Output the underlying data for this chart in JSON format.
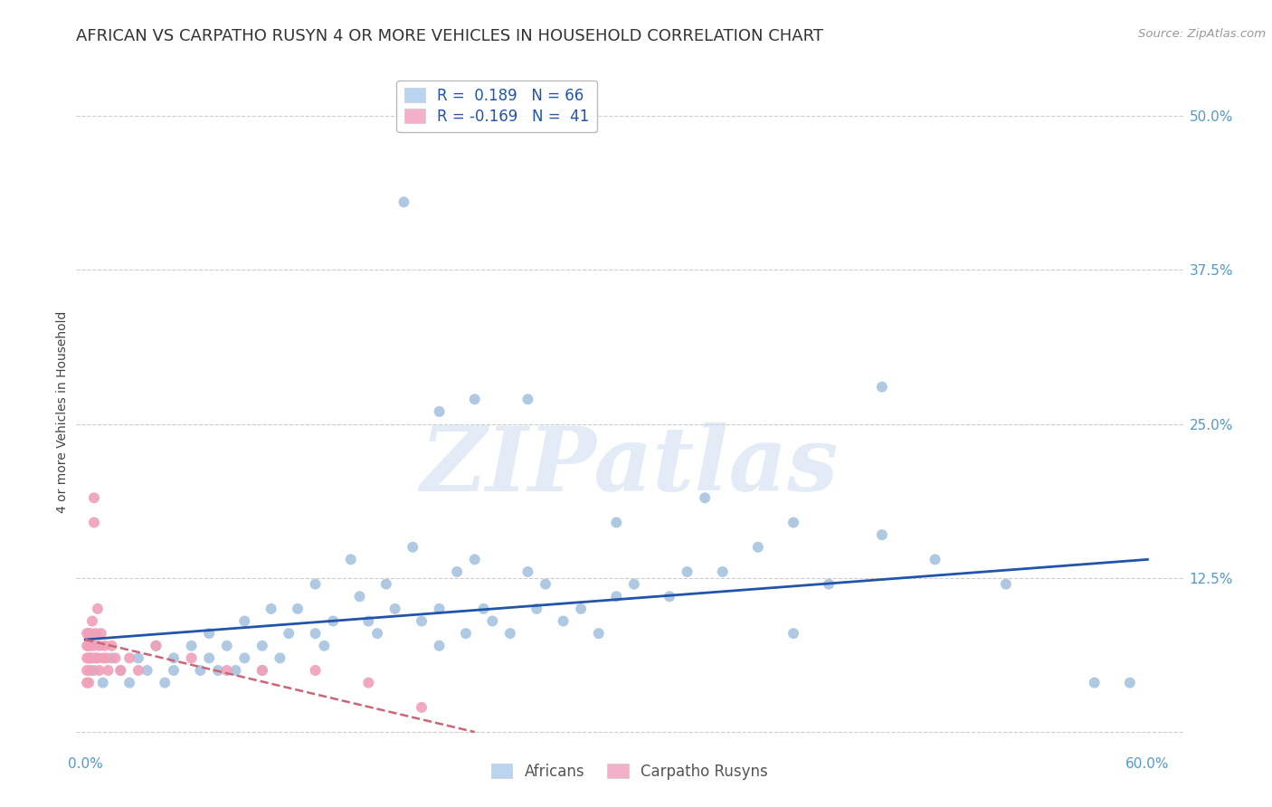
{
  "title": "AFRICAN VS CARPATHO RUSYN 4 OR MORE VEHICLES IN HOUSEHOLD CORRELATION CHART",
  "source": "Source: ZipAtlas.com",
  "ylabel": "4 or more Vehicles in Household",
  "xlim": [
    -0.005,
    0.62
  ],
  "ylim": [
    -0.015,
    0.535
  ],
  "background_color": "#ffffff",
  "grid_color": "#cccccc",
  "watermark_text": "ZIPatlas",
  "blue_dot_color": "#a8c4e0",
  "pink_dot_color": "#f0a0b8",
  "blue_line_color": "#2255aa",
  "pink_line_color": "#cc6677",
  "right_tick_color": "#5599cc",
  "x_tick_color": "#5599cc",
  "africans_x": [
    0.005,
    0.01,
    0.015,
    0.02,
    0.025,
    0.03,
    0.035,
    0.04,
    0.045,
    0.05,
    0.05,
    0.06,
    0.065,
    0.07,
    0.07,
    0.075,
    0.08,
    0.085,
    0.09,
    0.09,
    0.1,
    0.1,
    0.105,
    0.11,
    0.115,
    0.12,
    0.13,
    0.13,
    0.135,
    0.14,
    0.15,
    0.155,
    0.16,
    0.165,
    0.17,
    0.175,
    0.18,
    0.185,
    0.19,
    0.2,
    0.2,
    0.21,
    0.215,
    0.22,
    0.225,
    0.23,
    0.24,
    0.25,
    0.255,
    0.26,
    0.27,
    0.28,
    0.29,
    0.3,
    0.31,
    0.33,
    0.34,
    0.36,
    0.38,
    0.4,
    0.42,
    0.45,
    0.48,
    0.52,
    0.57,
    0.59
  ],
  "africans_y": [
    0.05,
    0.04,
    0.06,
    0.05,
    0.04,
    0.06,
    0.05,
    0.07,
    0.04,
    0.06,
    0.05,
    0.07,
    0.05,
    0.06,
    0.08,
    0.05,
    0.07,
    0.05,
    0.06,
    0.09,
    0.07,
    0.05,
    0.1,
    0.06,
    0.08,
    0.1,
    0.08,
    0.12,
    0.07,
    0.09,
    0.14,
    0.11,
    0.09,
    0.08,
    0.12,
    0.1,
    0.43,
    0.15,
    0.09,
    0.1,
    0.07,
    0.13,
    0.08,
    0.14,
    0.1,
    0.09,
    0.08,
    0.13,
    0.1,
    0.12,
    0.09,
    0.1,
    0.08,
    0.11,
    0.12,
    0.11,
    0.13,
    0.13,
    0.15,
    0.08,
    0.12,
    0.28,
    0.14,
    0.12,
    0.04,
    0.04
  ],
  "africans_extra_x": [
    0.2,
    0.22,
    0.25,
    0.3,
    0.35,
    0.4,
    0.45
  ],
  "africans_extra_y": [
    0.26,
    0.27,
    0.27,
    0.17,
    0.19,
    0.17,
    0.16
  ],
  "rusyns_x": [
    0.001,
    0.001,
    0.001,
    0.001,
    0.001,
    0.002,
    0.002,
    0.002,
    0.002,
    0.003,
    0.003,
    0.003,
    0.003,
    0.004,
    0.004,
    0.005,
    0.005,
    0.005,
    0.006,
    0.006,
    0.007,
    0.007,
    0.008,
    0.008,
    0.009,
    0.01,
    0.011,
    0.012,
    0.013,
    0.015,
    0.017,
    0.02,
    0.025,
    0.03,
    0.04,
    0.06,
    0.08,
    0.1,
    0.13,
    0.16,
    0.19
  ],
  "rusyns_y": [
    0.05,
    0.07,
    0.08,
    0.06,
    0.04,
    0.07,
    0.08,
    0.06,
    0.04,
    0.07,
    0.08,
    0.06,
    0.05,
    0.09,
    0.06,
    0.17,
    0.19,
    0.07,
    0.08,
    0.06,
    0.1,
    0.06,
    0.07,
    0.05,
    0.08,
    0.06,
    0.07,
    0.06,
    0.05,
    0.07,
    0.06,
    0.05,
    0.06,
    0.05,
    0.07,
    0.06,
    0.05,
    0.05,
    0.05,
    0.04,
    0.02
  ],
  "title_fontsize": 13,
  "axis_label_fontsize": 10,
  "tick_fontsize": 11,
  "legend_fontsize": 12
}
